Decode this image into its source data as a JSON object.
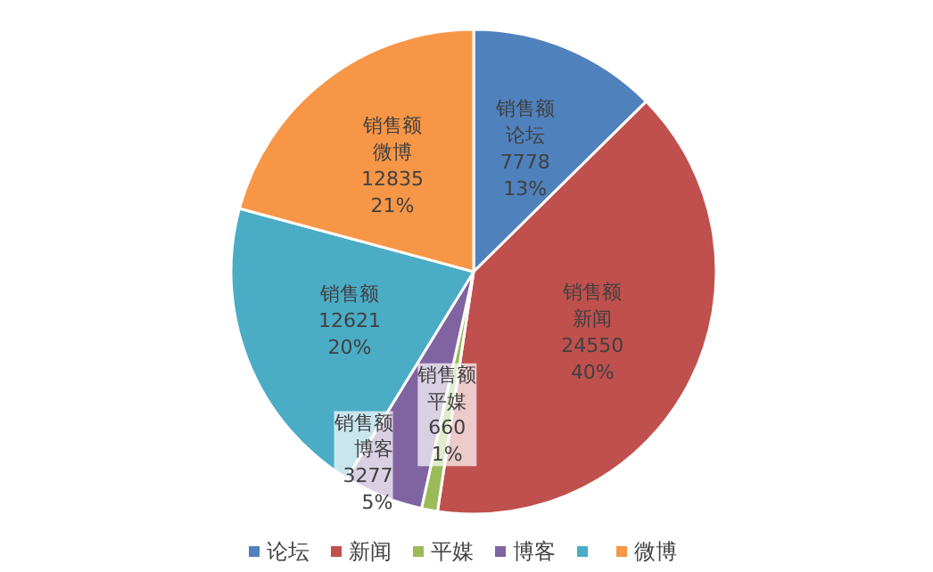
{
  "chart_data": {
    "type": "pie",
    "categories": [
      "论坛",
      "新闻",
      "平媒",
      "博客",
      null,
      "微博"
    ],
    "series": [
      {
        "name": "销售额",
        "values": [
          7778,
          24550,
          660,
          3277,
          12621,
          12835
        ],
        "value_labels": [
          "7778\n13%",
          "24550\n40%",
          "660\n1%",
          "3277\n5%",
          "12621\n20%",
          "12835\n21%"
        ]
      }
    ],
    "colors": [
      "#4f81bd",
      "#c0504d",
      "#9bbb59",
      "#8064a2",
      "#4bacc6",
      "#f79646"
    ],
    "legend": "bottom"
  }
}
